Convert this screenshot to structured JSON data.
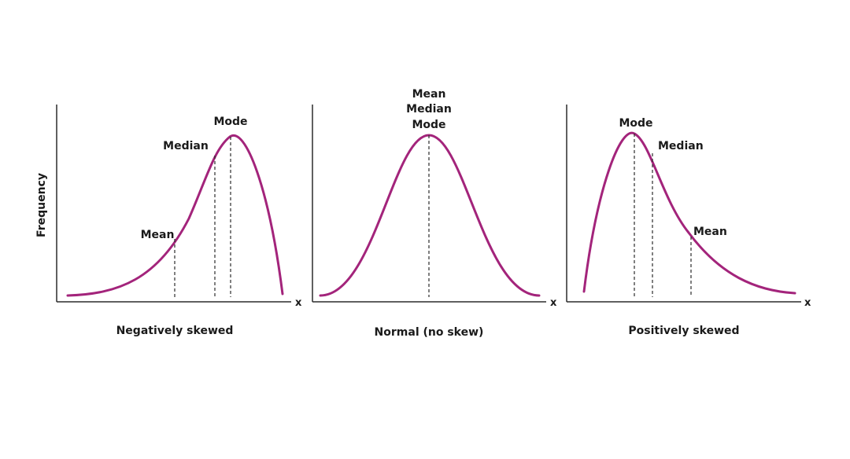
{
  "y_axis_label": "Frequency",
  "x_symbol": "x",
  "curve_color": "#A3247B",
  "panels": [
    {
      "caption": "Negatively skewed",
      "labels": {
        "mean": "Mean",
        "median": "Median",
        "mode": "Mode"
      }
    },
    {
      "caption": "Normal (no skew)",
      "labels": {
        "mean": "Mean",
        "median": "Median",
        "mode": "Mode"
      }
    },
    {
      "caption": "Positively skewed",
      "labels": {
        "mean": "Mean",
        "median": "Median",
        "mode": "Mode"
      }
    }
  ]
}
